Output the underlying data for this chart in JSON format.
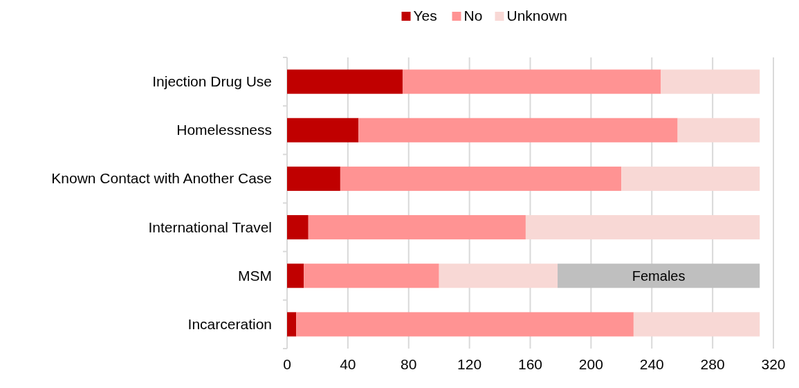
{
  "chart_data": {
    "type": "bar",
    "orientation": "horizontal",
    "stacked": true,
    "categories": [
      "Injection Drug Use",
      "Homelessness",
      "Known Contact with Another Case",
      "International Travel",
      "MSM",
      "Incarceration"
    ],
    "series": [
      {
        "name": "Yes",
        "color": "#c00000",
        "values": [
          76,
          47,
          35,
          14,
          11,
          6
        ]
      },
      {
        "name": "No",
        "color": "#ff9393",
        "values": [
          170,
          210,
          185,
          143,
          89,
          222
        ]
      },
      {
        "name": "Unknown",
        "color": "#f8d8d5",
        "values": [
          65,
          54,
          91,
          154,
          78,
          83
        ]
      },
      {
        "name": "Females",
        "color": "#bfbfbf",
        "values": [
          null,
          null,
          null,
          null,
          133,
          null
        ]
      }
    ],
    "xlim": [
      0,
      320
    ],
    "xticks": [
      0,
      40,
      80,
      120,
      160,
      200,
      240,
      280,
      320
    ],
    "grid": "x",
    "legend": "top"
  }
}
